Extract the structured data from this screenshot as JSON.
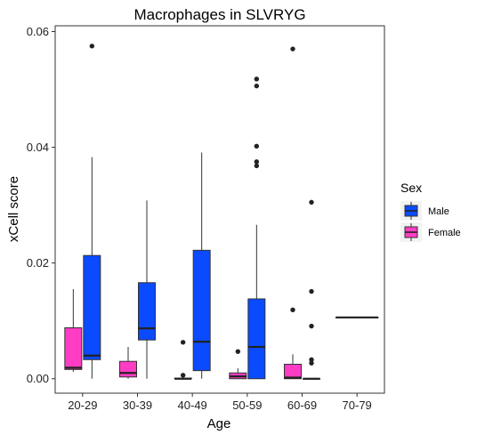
{
  "chart_data": {
    "type": "boxplot",
    "title": "Macrophages in SLVRYG",
    "xlabel": "Age",
    "ylabel": "xCell score",
    "ylim": [
      -0.0025,
      0.061
    ],
    "yticks": [
      0.0,
      0.02,
      0.04,
      0.06
    ],
    "ytick_labels": [
      "0.00",
      "0.02",
      "0.04",
      "0.06"
    ],
    "categories": [
      "20-29",
      "30-39",
      "40-49",
      "50-59",
      "60-69",
      "70-79"
    ],
    "grid": false,
    "legend": {
      "title": "Sex",
      "position": "right",
      "entries": [
        {
          "name": "Male",
          "color": "#0A4BFF"
        },
        {
          "name": "Female",
          "color": "#FF3DC4"
        }
      ]
    },
    "series": [
      {
        "name": "Female",
        "color": "#FF3DC4",
        "boxes": [
          {
            "category": "20-29",
            "min": 0.0012,
            "q1": 0.0016,
            "median": 0.0019,
            "q3": 0.0088,
            "max": 0.0155,
            "outliers": []
          },
          {
            "category": "30-39",
            "min": 0.0,
            "q1": 0.0003,
            "median": 0.001,
            "q3": 0.003,
            "max": 0.0055,
            "outliers": []
          },
          {
            "category": "40-49",
            "min": 0.0,
            "q1": 0.0,
            "median": 0.0,
            "q3": 0.0001,
            "max": 0.0001,
            "outliers": [
              0.0063,
              0.0006
            ]
          },
          {
            "category": "50-59",
            "min": 0.0,
            "q1": 0.0,
            "median": 0.0004,
            "q3": 0.001,
            "max": 0.0018,
            "outliers": [
              0.0047
            ]
          },
          {
            "category": "60-69",
            "min": 0.0,
            "q1": 0.0,
            "median": 0.0002,
            "q3": 0.0025,
            "max": 0.0042,
            "outliers": [
              0.0119,
              0.057
            ]
          }
        ]
      },
      {
        "name": "Male",
        "color": "#0A4BFF",
        "boxes": [
          {
            "category": "20-29",
            "min": 0.0,
            "q1": 0.0033,
            "median": 0.004,
            "q3": 0.0213,
            "max": 0.0383,
            "outliers": [
              0.0575
            ]
          },
          {
            "category": "30-39",
            "min": 0.0,
            "q1": 0.0067,
            "median": 0.0087,
            "q3": 0.0166,
            "max": 0.0308,
            "outliers": []
          },
          {
            "category": "40-49",
            "min": 0.0,
            "q1": 0.0014,
            "median": 0.0064,
            "q3": 0.0222,
            "max": 0.0391,
            "outliers": []
          },
          {
            "category": "50-59",
            "min": 0.0,
            "q1": 0.0,
            "median": 0.0055,
            "q3": 0.0138,
            "max": 0.0266,
            "outliers": [
              0.0518,
              0.0506,
              0.0402,
              0.0375,
              0.0368
            ]
          },
          {
            "category": "60-69",
            "min": 0.0,
            "q1": 0.0,
            "median": 0.0,
            "q3": 0.0,
            "max": 0.0,
            "outliers": [
              0.0305,
              0.0151,
              0.0091,
              0.0033,
              0.0027
            ]
          },
          {
            "category": "70-79",
            "min": 0.0106,
            "q1": 0.0106,
            "median": 0.0106,
            "q3": 0.0106,
            "max": 0.0106,
            "outliers": []
          }
        ]
      }
    ]
  }
}
